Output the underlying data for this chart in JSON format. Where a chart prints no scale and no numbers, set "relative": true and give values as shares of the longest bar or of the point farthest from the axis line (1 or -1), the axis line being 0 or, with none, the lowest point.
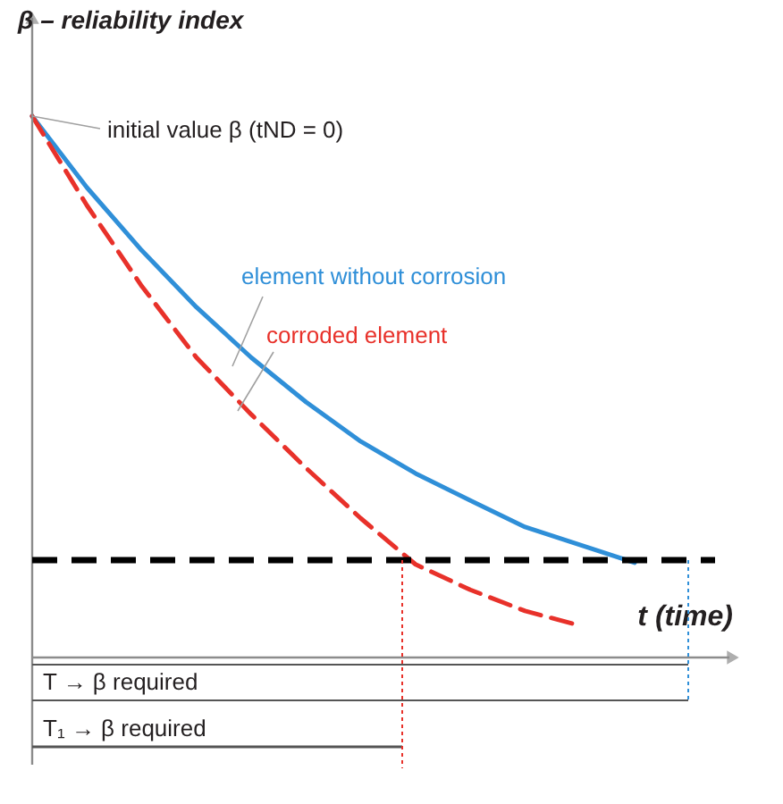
{
  "chart_data": {
    "type": "line",
    "relative": true,
    "ylabel": "β – reliability index",
    "xlabel": "t (time)",
    "categories": [
      null,
      null,
      null,
      null,
      null,
      null,
      null,
      null,
      null,
      null,
      null,
      null
    ],
    "series": [
      {
        "name": "element without corrosion",
        "color": "#2f8fd8",
        "line_style": "solid",
        "values": [
          1,
          0.868,
          0.752,
          0.647,
          0.554,
          0.472,
          0.399,
          0.34,
          0.29,
          0.241,
          0.208,
          0.175
        ]
      },
      {
        "name": "corroded element",
        "color": "#e8312a",
        "line_style": "dashed",
        "values": [
          1,
          0.835,
          0.686,
          0.554,
          0.449,
          0.35,
          0.257,
          0.172,
          0.125,
          0.086,
          0.059,
          null
        ]
      }
    ],
    "ref_lines": [
      {
        "axis": "y",
        "value": 0.18,
        "color": "#000000",
        "line_style": "dashed"
      }
    ],
    "annotations": [
      "initial value β (tND = 0)",
      "T → β required",
      "T₁ → β required"
    ],
    "legend": false,
    "grid": false
  }
}
